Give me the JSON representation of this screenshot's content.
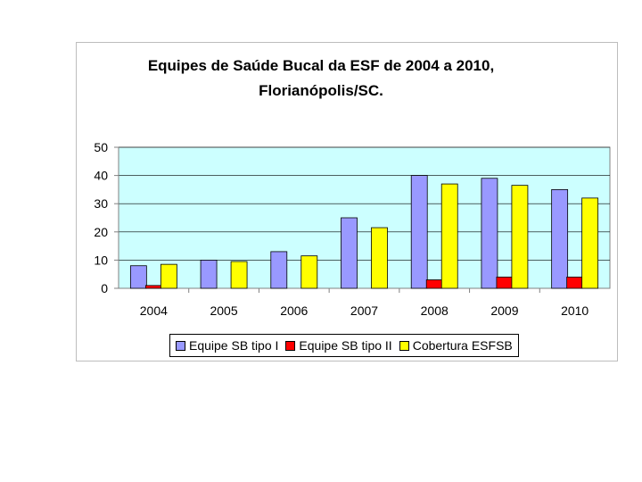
{
  "colors": {
    "plot_background": "#ccffff",
    "gridline": "#000000",
    "axis": "#808080"
  },
  "chart_data": {
    "type": "bar",
    "title": "Equipes de Saúde Bucal da ESF de 2004 a 2010,",
    "subtitle": "Florianópolis/SC.",
    "xlabel": "",
    "ylabel": "",
    "categories": [
      "2004",
      "2005",
      "2006",
      "2007",
      "2008",
      "2009",
      "2010"
    ],
    "series": [
      {
        "name": "Equipe SB tipo I",
        "color": "#9999ff",
        "values": [
          8,
          10,
          13,
          25,
          40,
          39,
          35
        ]
      },
      {
        "name": "Equipe SB tipo II",
        "color": "#ff0000",
        "values": [
          1,
          0,
          0,
          0,
          3,
          4,
          4
        ]
      },
      {
        "name": "Cobertura ESFSB",
        "color": "#ffff00",
        "values": [
          8.5,
          9.5,
          11.5,
          21.5,
          37,
          36.5,
          32
        ]
      }
    ],
    "ylim": [
      0,
      50
    ],
    "yticks": [
      "0",
      "10",
      "20",
      "30",
      "40",
      "50"
    ],
    "grid": true,
    "legend_position": "bottom"
  }
}
